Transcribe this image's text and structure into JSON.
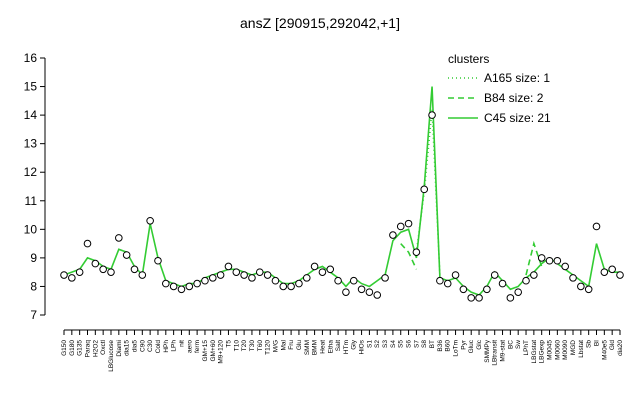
{
  "chart_data": {
    "type": "line",
    "title": "ansZ [290915,292042,+1]",
    "legend_title": "clusters",
    "legend": "top-right",
    "categories": [
      "G150",
      "G180",
      "G135",
      "Paraq",
      "H2O2",
      "Oxctl",
      "LBGlucose",
      "Diami",
      "dia15",
      "dia5",
      "C90",
      "C30",
      "Cold",
      "HPh",
      "LPh",
      "nit",
      "aero",
      "ferm",
      "GM+15",
      "GM+60",
      "M9+120",
      "T5",
      "T10",
      "T20",
      "T30",
      "T60",
      "T120",
      "M/G",
      "Mal",
      "Fru",
      "Glu",
      "SMM",
      "BMM",
      "Heat",
      "Etha",
      "Salt",
      "HTm",
      "Gly",
      "HiOs",
      "S1",
      "S2",
      "S3",
      "S4",
      "S5",
      "S6",
      "S7",
      "S8",
      "BT",
      "B36",
      "B60",
      "LoTm",
      "Pyr",
      "Gluc",
      "Glc",
      "SMMPy",
      "LBtransit",
      "M9-stat",
      "BC",
      "Sw",
      "LPhT",
      "LBGstat",
      "LBGexp",
      "M0045",
      "M0060",
      "M0090",
      "MGD",
      "Lbstat",
      "Sb",
      "BI",
      "M40e5",
      "Gld",
      "dia20"
    ],
    "series": [
      {
        "name": "A165 size: 1",
        "color": "#33cc33",
        "dash": "dotted",
        "values": [
          null,
          null,
          null,
          null,
          null,
          null,
          null,
          null,
          null,
          null,
          null,
          null,
          null,
          null,
          null,
          null,
          null,
          null,
          null,
          null,
          null,
          null,
          null,
          null,
          null,
          null,
          null,
          null,
          null,
          null,
          null,
          null,
          null,
          null,
          null,
          null,
          null,
          null,
          null,
          null,
          null,
          null,
          null,
          null,
          null,
          9.2,
          11.3,
          14.2,
          8.4,
          null,
          null,
          null,
          null,
          null,
          null,
          null,
          null,
          null,
          null,
          null,
          null,
          null,
          null,
          null,
          null,
          null,
          null,
          null,
          null,
          null,
          null,
          null
        ]
      },
      {
        "name": "B84 size: 2",
        "color": "#33cc33",
        "dash": "dashed",
        "values": [
          null,
          null,
          null,
          null,
          null,
          null,
          null,
          null,
          null,
          null,
          null,
          null,
          null,
          null,
          null,
          null,
          null,
          null,
          null,
          null,
          null,
          null,
          null,
          null,
          null,
          null,
          null,
          null,
          null,
          null,
          null,
          null,
          null,
          null,
          null,
          null,
          null,
          null,
          null,
          null,
          null,
          null,
          null,
          9.5,
          9.2,
          8.6,
          null,
          null,
          null,
          null,
          null,
          null,
          null,
          null,
          null,
          null,
          null,
          null,
          null,
          8.4,
          9.5,
          8.7,
          null,
          null,
          null,
          null,
          null,
          null,
          null,
          null,
          null,
          null
        ]
      },
      {
        "name": "C45 size: 21",
        "color": "#33cc33",
        "dash": "solid",
        "values": [
          8.4,
          8.5,
          8.6,
          9.0,
          8.9,
          8.7,
          8.6,
          9.3,
          9.2,
          8.7,
          8.4,
          10.2,
          9.0,
          8.2,
          8.1,
          8.0,
          8.1,
          8.1,
          8.3,
          8.4,
          8.5,
          8.6,
          8.6,
          8.5,
          8.4,
          8.5,
          8.5,
          8.3,
          8.1,
          8.1,
          8.2,
          8.4,
          8.6,
          8.7,
          8.5,
          8.3,
          8.0,
          8.3,
          8.1,
          8.0,
          8.2,
          8.4,
          9.6,
          9.9,
          10.0,
          9.0,
          11.5,
          15.0,
          8.3,
          8.2,
          8.3,
          8.0,
          7.8,
          7.7,
          8.0,
          8.5,
          8.2,
          7.9,
          8.0,
          8.3,
          8.5,
          8.8,
          9.0,
          8.8,
          8.6,
          8.4,
          8.2,
          8.0,
          9.5,
          8.6,
          8.5,
          8.5
        ]
      }
    ],
    "points": [
      8.4,
      8.3,
      8.5,
      9.5,
      8.8,
      8.6,
      8.5,
      9.7,
      9.1,
      8.6,
      8.4,
      10.3,
      8.9,
      8.1,
      8.0,
      7.9,
      8.0,
      8.1,
      8.2,
      8.3,
      8.4,
      8.7,
      8.5,
      8.4,
      8.3,
      8.5,
      8.4,
      8.2,
      8.0,
      8.0,
      8.1,
      8.3,
      8.7,
      8.5,
      8.6,
      8.2,
      7.8,
      8.2,
      7.9,
      7.8,
      7.7,
      8.3,
      9.8,
      10.1,
      10.2,
      9.2,
      11.4,
      14.0,
      8.2,
      8.1,
      8.4,
      7.9,
      7.6,
      7.6,
      7.9,
      8.4,
      8.1,
      7.6,
      7.8,
      8.2,
      8.4,
      9.0,
      8.9,
      8.9,
      8.7,
      8.3,
      8.0,
      7.9,
      10.1,
      8.5,
      8.6,
      8.4
    ],
    "ylim": [
      7,
      16
    ],
    "yticks": [
      7,
      8,
      9,
      10,
      11,
      12,
      13,
      14,
      15,
      16
    ]
  }
}
